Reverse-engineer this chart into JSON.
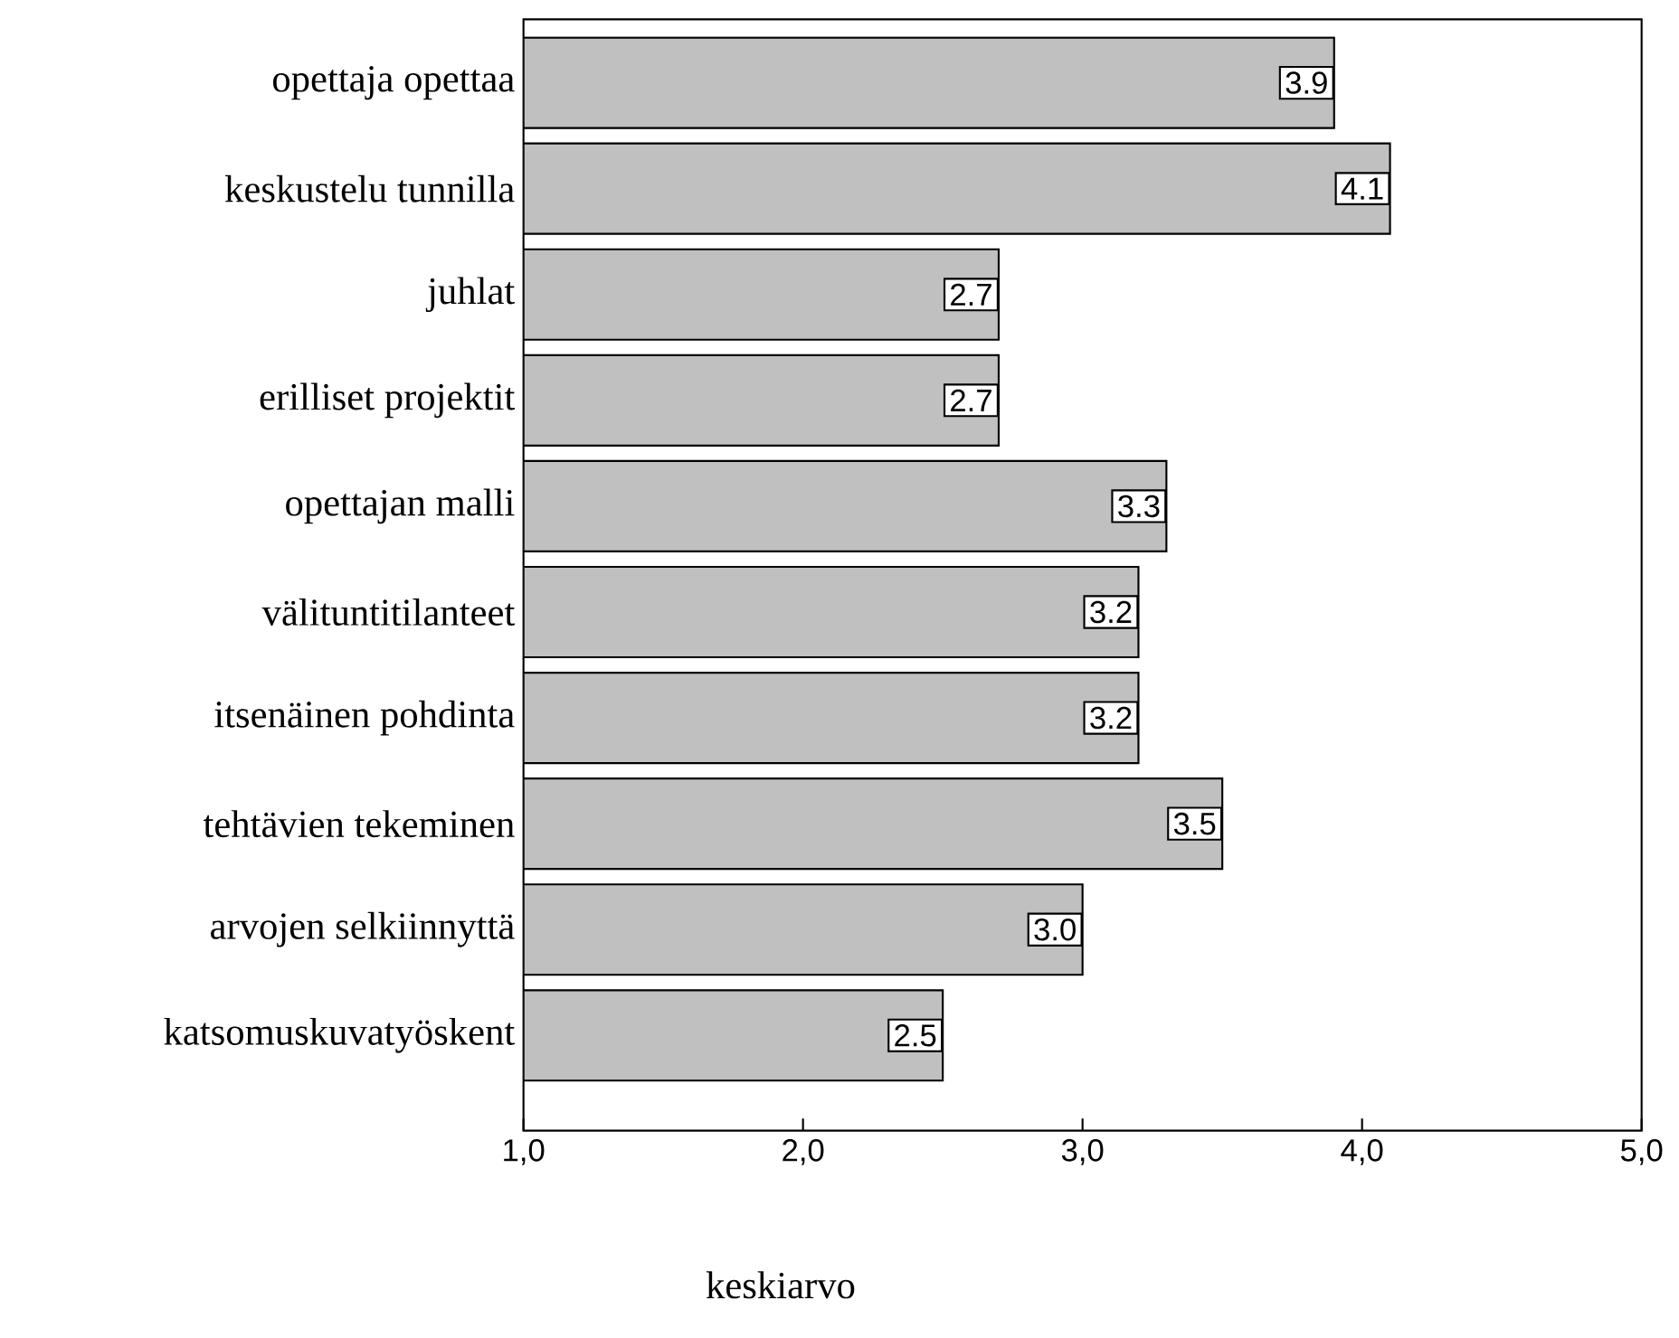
{
  "chart_data": {
    "type": "bar",
    "orientation": "horizontal",
    "xlabel": "keskiarvo",
    "categories": [
      "opettaja opettaa",
      "keskustelu tunnilla",
      "juhlat",
      "erilliset projektit",
      "opettajan  malli",
      "välituntitilanteet",
      "itsenäinen pohdinta",
      "tehtävien tekeminen",
      "arvojen selkiinnyttä",
      "katsomuskuvatyöskent"
    ],
    "values": [
      3.9,
      4.1,
      2.7,
      2.7,
      3.3,
      3.2,
      3.2,
      3.5,
      3.0,
      2.5
    ],
    "value_labels": [
      "3.9",
      "4.1",
      "2.7",
      "2.7",
      "3.3",
      "3.2",
      "3.2",
      "3.5",
      "3.0",
      "2.5"
    ],
    "color": "#c0c0c0",
    "xlim": [
      1,
      5
    ],
    "xticks": [
      {
        "value": 1,
        "label": "1,0"
      },
      {
        "value": 2,
        "label": "2,0"
      },
      {
        "value": 3,
        "label": "3,0"
      },
      {
        "value": 4,
        "label": "4,0"
      },
      {
        "value": 5,
        "label": "5,0"
      }
    ]
  }
}
